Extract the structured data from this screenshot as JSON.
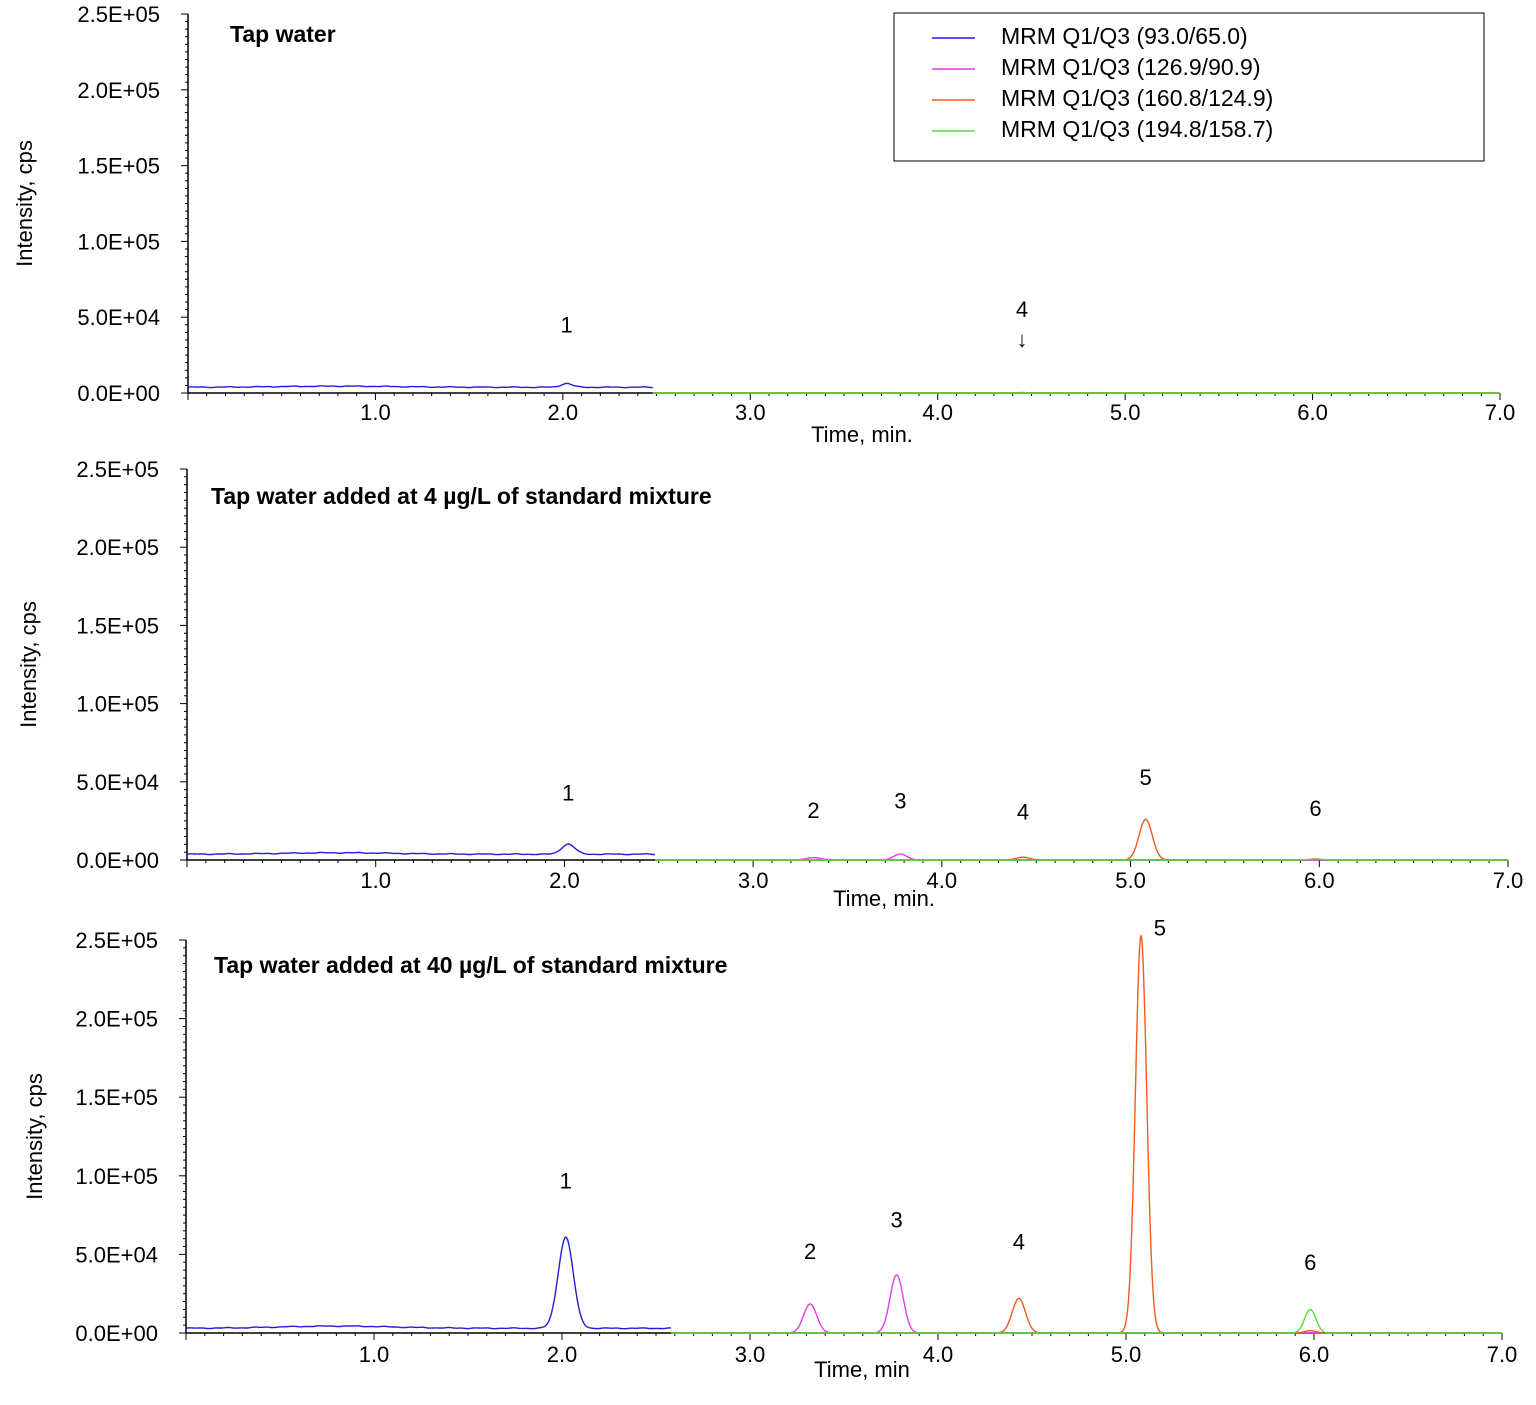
{
  "colors": {
    "series": [
      "#1f1fd6",
      "#e83de8",
      "#f25a1e",
      "#4fe03a"
    ],
    "axis": "#000000",
    "background": "#ffffff"
  },
  "chart_data": [
    {
      "type": "line",
      "title": "Tap water",
      "xlabel": "Time, min.",
      "ylabel": "Intensity, cps",
      "xlim": [
        0,
        7.0
      ],
      "ylim": [
        0,
        250000
      ],
      "x_ticks": [
        "1.0",
        "2.0",
        "3.0",
        "4.0",
        "5.0",
        "6.0",
        "7.0"
      ],
      "y_ticks": [
        "0.0E+00",
        "5.0E+04",
        "1.0E+05",
        "1.5E+05",
        "2.0E+05",
        "2.5E+05"
      ],
      "legend": {
        "position": "top-right",
        "entries": [
          "MRM Q1/Q3 (93.0/65.0)",
          "MRM Q1/Q3 (126.9/90.9)",
          "MRM Q1/Q3 (160.8/124.9)",
          "MRM Q1/Q3 (194.8/158.7)"
        ]
      },
      "series": [
        {
          "name": "MRM Q1/Q3 (93.0/65.0)",
          "x_range": [
            0.0,
            2.48
          ],
          "baseline": 3800,
          "bumps": [
            {
              "x": 0.8,
              "h": 700,
              "w": 0.3
            }
          ],
          "peaks": [
            {
              "x": 2.02,
              "h": 2500,
              "w": 0.03
            }
          ]
        },
        {
          "name": "MRM Q1/Q3 (126.9/90.9)",
          "x_range": [
            2.48,
            7.0
          ],
          "baseline": 0,
          "peaks": []
        },
        {
          "name": "MRM Q1/Q3 (160.8/124.9)",
          "x_range": [
            2.48,
            7.0
          ],
          "baseline": 0,
          "peaks": [
            {
              "x": 4.45,
              "h": 300,
              "w": 0.03
            }
          ]
        },
        {
          "name": "MRM Q1/Q3 (194.8/158.7)",
          "x_range": [
            2.48,
            7.0
          ],
          "baseline": 0,
          "peaks": []
        }
      ],
      "annotations": [
        {
          "label": "1",
          "x": 2.02,
          "y": 40000,
          "arrow": false
        },
        {
          "label": "4",
          "x": 4.45,
          "y": 50000,
          "arrow": true,
          "arrow_glyph": "↓"
        }
      ]
    },
    {
      "type": "line",
      "title": "Tap water added at 4 µg/L of standard mixture",
      "xlabel": "Time, min.",
      "ylabel": "Intensity, cps",
      "xlim": [
        0,
        7.0
      ],
      "ylim": [
        0,
        250000
      ],
      "x_ticks": [
        "1.0",
        "2.0",
        "3.0",
        "4.0",
        "5.0",
        "6.0",
        "7.0"
      ],
      "y_ticks": [
        "0.0E+00",
        "5.0E+04",
        "1.0E+05",
        "1.5E+05",
        "2.0E+05",
        "2.5E+05"
      ],
      "series": [
        {
          "name": "MRM Q1/Q3 (93.0/65.0)",
          "x_range": [
            0.0,
            2.48
          ],
          "baseline": 3700,
          "bumps": [
            {
              "x": 0.8,
              "h": 900,
              "w": 0.3
            }
          ],
          "peaks": [
            {
              "x": 2.02,
              "h": 6500,
              "w": 0.035
            }
          ]
        },
        {
          "name": "MRM Q1/Q3 (126.9/90.9)",
          "x_range": [
            2.48,
            7.0
          ],
          "baseline": 0,
          "peaks": [
            {
              "x": 3.32,
              "h": 1500,
              "w": 0.04
            },
            {
              "x": 3.78,
              "h": 3800,
              "w": 0.035
            }
          ]
        },
        {
          "name": "MRM Q1/Q3 (160.8/124.9)",
          "x_range": [
            2.48,
            7.0
          ],
          "baseline": 0,
          "peaks": [
            {
              "x": 4.43,
              "h": 1800,
              "w": 0.035
            },
            {
              "x": 5.08,
              "h": 26000,
              "w": 0.035
            },
            {
              "x": 5.98,
              "h": 700,
              "w": 0.03
            }
          ]
        },
        {
          "name": "MRM Q1/Q3 (194.8/158.7)",
          "x_range": [
            2.48,
            7.0
          ],
          "baseline": 0,
          "peaks": [
            {
              "x": 5.98,
              "h": 600,
              "w": 0.03
            }
          ]
        }
      ],
      "annotations": [
        {
          "label": "1",
          "x": 2.02,
          "y": 38000
        },
        {
          "label": "2",
          "x": 3.32,
          "y": 27000
        },
        {
          "label": "3",
          "x": 3.78,
          "y": 33000
        },
        {
          "label": "4",
          "x": 4.43,
          "y": 26000
        },
        {
          "label": "5",
          "x": 5.08,
          "y": 48000
        },
        {
          "label": "6",
          "x": 5.98,
          "y": 28000
        }
      ]
    },
    {
      "type": "line",
      "title": "Tap water added at 40 µg/L of standard mixture",
      "xlabel": "Time, min",
      "ylabel": "Intensity, cps",
      "xlim": [
        0,
        7.0
      ],
      "ylim": [
        0,
        250000
      ],
      "x_ticks": [
        "1.0",
        "2.0",
        "3.0",
        "4.0",
        "5.0",
        "6.0",
        "7.0"
      ],
      "y_ticks": [
        "0.0E+00",
        "5.0E+04",
        "1.0E+05",
        "1.5E+05",
        "2.0E+05",
        "2.5E+05"
      ],
      "series": [
        {
          "name": "MRM Q1/Q3 (93.0/65.0)",
          "x_range": [
            0.0,
            2.58
          ],
          "baseline": 3000,
          "bumps": [
            {
              "x": 0.8,
              "h": 1400,
              "w": 0.3
            }
          ],
          "peaks": [
            {
              "x": 2.02,
              "h": 58000,
              "w": 0.04
            }
          ]
        },
        {
          "name": "MRM Q1/Q3 (126.9/90.9)",
          "x_range": [
            2.58,
            7.0
          ],
          "baseline": 0,
          "peaks": [
            {
              "x": 3.32,
              "h": 18500,
              "w": 0.035
            },
            {
              "x": 3.78,
              "h": 37000,
              "w": 0.035
            }
          ]
        },
        {
          "name": "MRM Q1/Q3 (160.8/124.9)",
          "x_range": [
            2.58,
            7.0
          ],
          "baseline": 0,
          "peaks": [
            {
              "x": 4.43,
              "h": 22000,
              "w": 0.035
            },
            {
              "x": 5.08,
              "h": 253000,
              "w": 0.03
            },
            {
              "x": 5.98,
              "h": 1500,
              "w": 0.03
            }
          ]
        },
        {
          "name": "MRM Q1/Q3 (194.8/158.7)",
          "x_range": [
            2.58,
            7.0
          ],
          "baseline": 0,
          "peaks": [
            {
              "x": 5.98,
              "h": 15000,
              "w": 0.03
            }
          ]
        }
      ],
      "annotations": [
        {
          "label": "1",
          "x": 2.02,
          "y": 92000
        },
        {
          "label": "2",
          "x": 3.32,
          "y": 47000
        },
        {
          "label": "3",
          "x": 3.78,
          "y": 67000
        },
        {
          "label": "4",
          "x": 4.43,
          "y": 53000
        },
        {
          "label": "5",
          "x": 5.18,
          "y": 253000
        },
        {
          "label": "6",
          "x": 5.98,
          "y": 40000
        }
      ]
    }
  ]
}
